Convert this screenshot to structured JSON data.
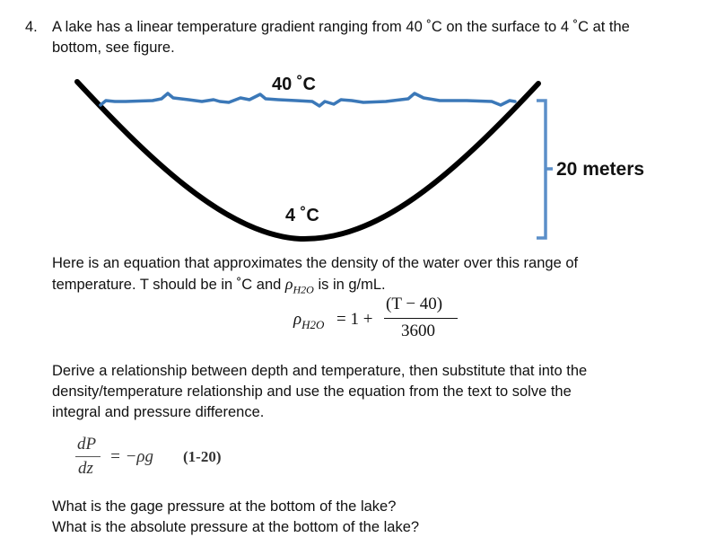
{
  "problem": {
    "number": "4.",
    "line1": "A lake has a linear temperature gradient ranging from 40 ˚C on the surface to 4 ˚C at the",
    "line2": "bottom, see figure."
  },
  "figure": {
    "surface_temp": "40 ˚C",
    "bottom_temp": "4 ˚C",
    "depth_label": "20 meters",
    "colors": {
      "lake_outline": "#000000",
      "water_surface": "#3b78b8",
      "bracket": "#5b8fc9"
    }
  },
  "paragraph1": {
    "line1": "Here is an equation that approximates the density of the water over this range of",
    "line2_a": "temperature. T should be in ˚C and ",
    "line2_rho": "ρ",
    "line2_sub": "H2O",
    "line2_b": " is in g/mL."
  },
  "equation1": {
    "lhs_rho": "ρ",
    "lhs_sub": "H2O",
    "equals_one_plus": "= 1 +",
    "numerator": "(T − 40)",
    "denominator": "3600"
  },
  "paragraph2": {
    "line1": "Derive a relationship between depth and temperature, then substitute that into the",
    "line2": "density/temperature relationship and use the equation from the text to solve the",
    "line3": "integral and pressure difference."
  },
  "equation2": {
    "numerator": "dP",
    "denominator": "dz",
    "rhs": "= −ρg",
    "ref": "(1-20)"
  },
  "questions": {
    "q1": "What is the gage pressure at the bottom of the lake?",
    "q2": "What is the absolute pressure at the bottom of the lake?"
  }
}
